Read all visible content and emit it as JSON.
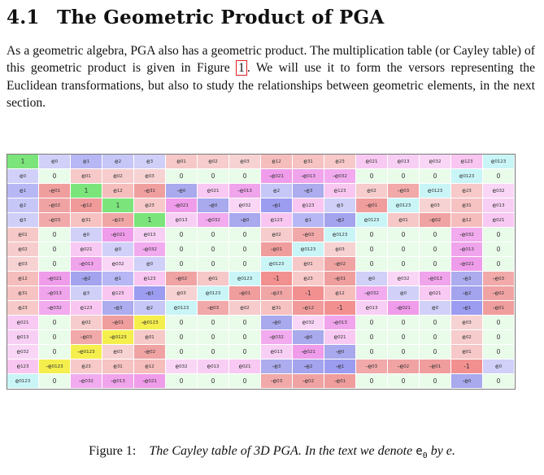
{
  "section": {
    "number": "4.1",
    "title": "The Geometric Product of PGA"
  },
  "paragraph": {
    "before_ref": "As a geometric algebra, PGA also has a geometric product. The multiplication table (or Cayley table) of this geometric product is given in Figure ",
    "ref": "1",
    "after_ref": ". We will use it to form the versors representing the Euclidean transformations, but also to study the relationships between geometric elements, in the next section."
  },
  "caption": {
    "label": "Figure 1:",
    "text": "The Cayley table of 3D PGA. In the text we denote",
    "symbol": "e",
    "symbol_sub": "0",
    "text_after": "by e."
  },
  "colors": {
    "positive": "#ffffff",
    "background_zero": "#e9fbe9"
  },
  "cayley_table": [
    [
      "1",
      "e0",
      "e1",
      "e2",
      "e3",
      "e01",
      "e02",
      "e03",
      "e12",
      "e31",
      "e23",
      "e021",
      "e013",
      "e032",
      "e123",
      "e0123"
    ],
    [
      "e0",
      "0",
      "e01",
      "e02",
      "e03",
      "0",
      "0",
      "0",
      "-e021",
      "-e013",
      "-e032",
      "0",
      "0",
      "0",
      "e0123",
      "0"
    ],
    [
      "e1",
      "-e01",
      "1",
      "e12",
      "-e31",
      "-e0",
      "e021",
      "-e013",
      "e2",
      "-e3",
      "e123",
      "e02",
      "-e03",
      "e0123",
      "e23",
      "e032"
    ],
    [
      "e2",
      "-e02",
      "-e12",
      "1",
      "e23",
      "-e021",
      "-e0",
      "e032",
      "-e1",
      "e123",
      "e3",
      "-e01",
      "e0123",
      "e03",
      "e31",
      "e013"
    ],
    [
      "e3",
      "-e03",
      "e31",
      "-e23",
      "1",
      "e013",
      "-e032",
      "-e0",
      "e123",
      "e1",
      "-e2",
      "e0123",
      "e01",
      "-e02",
      "e12",
      "e021"
    ],
    [
      "e01",
      "0",
      "e0",
      "-e021",
      "e013",
      "0",
      "0",
      "0",
      "e02",
      "-e03",
      "e0123",
      "0",
      "0",
      "0",
      "-e032",
      "0"
    ],
    [
      "e02",
      "0",
      "e021",
      "e0",
      "-e032",
      "0",
      "0",
      "0",
      "-e01",
      "e0123",
      "e03",
      "0",
      "0",
      "0",
      "-e013",
      "0"
    ],
    [
      "e03",
      "0",
      "-e013",
      "e032",
      "e0",
      "0",
      "0",
      "0",
      "e0123",
      "e01",
      "-e02",
      "0",
      "0",
      "0",
      "-e021",
      "0"
    ],
    [
      "e12",
      "-e021",
      "-e2",
      "e1",
      "e123",
      "-e02",
      "e01",
      "e0123",
      "-1",
      "e23",
      "-e31",
      "e0",
      "e032",
      "-e013",
      "-e3",
      "-e03"
    ],
    [
      "e31",
      "-e013",
      "e3",
      "e123",
      "-e1",
      "e03",
      "e0123",
      "-e01",
      "-e23",
      "-1",
      "e12",
      "-e032",
      "e0",
      "e021",
      "-e2",
      "-e02"
    ],
    [
      "e23",
      "-e032",
      "e123",
      "-e3",
      "e2",
      "e0123",
      "-e03",
      "e02",
      "e31",
      "-e12",
      "-1",
      "e013",
      "-e021",
      "e0",
      "-e1",
      "-e01"
    ],
    [
      "e021",
      "0",
      "e02",
      "-e01",
      "-e0123",
      "0",
      "0",
      "0",
      "-e0",
      "e032",
      "-e013",
      "0",
      "0",
      "0",
      "e03",
      "0"
    ],
    [
      "e013",
      "0",
      "-e03",
      "-e0123",
      "e01",
      "0",
      "0",
      "0",
      "-e032",
      "-e0",
      "e021",
      "0",
      "0",
      "0",
      "e02",
      "0"
    ],
    [
      "e032",
      "0",
      "-e0123",
      "e03",
      "-e02",
      "0",
      "0",
      "0",
      "e013",
      "-e021",
      "-e0",
      "0",
      "0",
      "0",
      "e01",
      "0"
    ],
    [
      "e123",
      "-e0123",
      "e23",
      "e31",
      "e12",
      "e032",
      "e013",
      "e021",
      "-e3",
      "-e2",
      "-e1",
      "-e03",
      "-e02",
      "-e01",
      "-1",
      "e0"
    ],
    [
      "e0123",
      "0",
      "-e032",
      "-e013",
      "-e021",
      "0",
      "0",
      "0",
      "-e03",
      "-e02",
      "-e01",
      "0",
      "0",
      "0",
      "-e0",
      "0"
    ]
  ]
}
